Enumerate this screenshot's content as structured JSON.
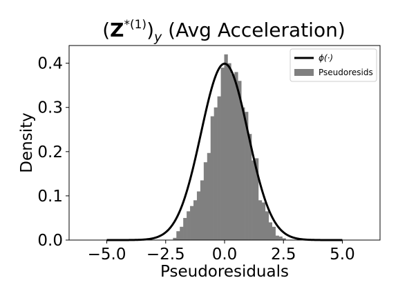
{
  "chart_data": {
    "type": "bar",
    "title": {
      "open": "(",
      "bold_z": "Z",
      "sup": "*(1)",
      "close": ")",
      "sub": "y",
      "rest": " (Avg Acceleration)"
    },
    "xlabel": "Pseudoresiduals",
    "ylabel": "Density",
    "xlim": [
      -6.6,
      6.6
    ],
    "ylim": [
      0,
      0.44
    ],
    "xticks": [
      -5.0,
      -2.5,
      0.0,
      2.5,
      5.0
    ],
    "xtick_labels": [
      "−5.0",
      "−2.5",
      "0.0",
      "2.5",
      "5.0"
    ],
    "yticks": [
      0.0,
      0.1,
      0.2,
      0.3,
      0.4
    ],
    "ytick_labels": [
      "0.0",
      "0.1",
      "0.2",
      "0.3",
      "0.4"
    ],
    "grid": false,
    "legend_position": "top-right",
    "histogram": {
      "name": "Pseudoresids",
      "color": "#808080",
      "bin_width": 0.145,
      "bin_lefts": [
        -2.19,
        -2.045,
        -1.9,
        -1.755,
        -1.61,
        -1.465,
        -1.32,
        -1.175,
        -1.03,
        -0.885,
        -0.74,
        -0.595,
        -0.45,
        -0.305,
        -0.16,
        -0.015,
        0.13,
        0.275,
        0.42,
        0.565,
        0.71,
        0.855,
        1.0,
        1.145,
        1.29,
        1.435,
        1.58,
        1.725,
        1.87,
        2.015,
        2.16,
        2.305,
        2.45
      ],
      "densities": [
        0.005,
        0.02,
        0.03,
        0.05,
        0.065,
        0.077,
        0.09,
        0.11,
        0.135,
        0.176,
        0.197,
        0.28,
        0.3,
        0.325,
        0.39,
        0.42,
        0.4,
        0.375,
        0.38,
        0.36,
        0.3,
        0.29,
        0.24,
        0.18,
        0.185,
        0.09,
        0.085,
        0.065,
        0.04,
        0.03,
        0.01,
        0.008,
        0.004
      ]
    },
    "curve": {
      "name": "ϕ(·)",
      "color": "#000000",
      "type": "standard-normal-pdf",
      "x_range": [
        -5,
        5
      ]
    }
  }
}
